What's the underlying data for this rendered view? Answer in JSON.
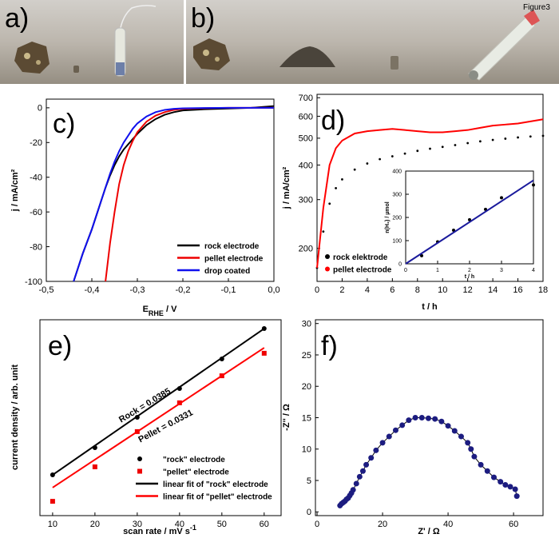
{
  "photos": {
    "a": "a)",
    "b": "b)",
    "b_tag": "Figure3"
  },
  "chart_data": [
    {
      "type": "line",
      "panel": "c)",
      "xlabel": [
        "E",
        "RHE",
        " / V"
      ],
      "ylabel": "j / mA/cm²",
      "x": [
        -0.44,
        -0.42,
        -0.4,
        -0.38,
        -0.37,
        -0.36,
        -0.35,
        -0.34,
        -0.33,
        -0.32,
        -0.31,
        -0.3,
        -0.28,
        -0.26,
        -0.24,
        -0.22,
        -0.2,
        -0.15,
        -0.1,
        -0.05,
        0.0
      ],
      "xlim": [
        -0.5,
        0.0
      ],
      "ylim": [
        -100,
        5
      ],
      "xticks": [
        {
          "value": -0.5,
          "label": "-0,5"
        },
        {
          "value": -0.4,
          "label": "-0,4"
        },
        {
          "value": -0.3,
          "label": "-0,3"
        },
        {
          "value": -0.2,
          "label": "-0,2"
        },
        {
          "value": -0.1,
          "label": "-0,1"
        },
        {
          "value": 0.0,
          "label": "0,0"
        }
      ],
      "yticks": [
        0,
        -20,
        -40,
        -60,
        -80,
        -100
      ],
      "legend": "lower right",
      "series": [
        {
          "name": "rock electrode",
          "color": "#000000",
          "mode": "lines",
          "values": [
            -100,
            -84,
            -70,
            -54,
            -46,
            -39,
            -33,
            -28,
            -24,
            -21,
            -18,
            -15,
            -10,
            -6.5,
            -4,
            -2.5,
            -1.5,
            -0.8,
            -0.4,
            0,
            1
          ]
        },
        {
          "name": "pellet electrode",
          "color": "#ee0000",
          "mode": "lines",
          "values": [
            null,
            null,
            null,
            null,
            -100,
            -78,
            -60,
            -44,
            -33,
            -25,
            -19,
            -14,
            -8,
            -4.5,
            -2.5,
            -1.2,
            -0.6,
            -0.2,
            0,
            0,
            0
          ]
        },
        {
          "name": "drop coated",
          "color": "#1010ee",
          "mode": "lines",
          "values": [
            -100,
            -84,
            -70,
            -54,
            -46,
            -38,
            -31,
            -25,
            -20,
            -16,
            -12,
            -9,
            -5,
            -2.5,
            -1.2,
            -0.6,
            -0.3,
            -0.1,
            0,
            0,
            0
          ]
        }
      ]
    },
    {
      "type": "scatter",
      "panel": "d)",
      "xlabel": "t / h",
      "ylabel": "j / mA/cm²",
      "yscale": "log",
      "x": [
        0,
        0.5,
        1,
        1.5,
        2,
        3,
        4,
        5,
        6,
        7,
        8,
        9,
        10,
        11,
        12,
        13,
        14,
        15,
        16,
        17,
        18
      ],
      "xlim": [
        0,
        18
      ],
      "ylim": [
        152,
        720
      ],
      "xticks": [
        0,
        2,
        4,
        6,
        8,
        10,
        12,
        14,
        16,
        18
      ],
      "yticks": [
        200,
        300,
        400,
        500,
        600,
        700
      ],
      "legend": "lower left",
      "series": [
        {
          "name": "rock elektrode",
          "color": "#000000",
          "mode": "markers",
          "values": [
            170,
            230,
            290,
            330,
            355,
            385,
            405,
            420,
            430,
            440,
            450,
            458,
            465,
            472,
            480,
            487,
            493,
            498,
            503,
            507,
            510
          ]
        },
        {
          "name": "pellet electrode",
          "color": "#ff0000",
          "mode": "lines",
          "values": [
            170,
            280,
            400,
            460,
            490,
            520,
            530,
            535,
            540,
            535,
            530,
            525,
            525,
            530,
            535,
            545,
            555,
            560,
            565,
            575,
            585
          ]
        }
      ]
    },
    {
      "type": "scatter",
      "xlabel": "t / h",
      "ylabel": "n(H₂) / µmol",
      "xlim": [
        0,
        4
      ],
      "ylim": [
        0,
        400
      ],
      "xticks": [
        0,
        1,
        2,
        3,
        4
      ],
      "yticks": [
        0,
        100,
        200,
        300,
        400
      ],
      "series": [
        {
          "color": "#000000",
          "mode": "markers",
          "x": [
            0.5,
            1,
            1.5,
            2,
            2.5,
            3,
            4
          ],
          "values": [
            35,
            95,
            145,
            190,
            235,
            285,
            340
          ]
        },
        {
          "color": "#1a1a9c",
          "mode": "lines",
          "x": [
            0,
            4
          ],
          "values": [
            0,
            360
          ]
        }
      ]
    },
    {
      "type": "scatter",
      "panel": "e)",
      "xlabel": [
        "scan rate / mV s",
        "-1"
      ],
      "ylabel": "current density / arb. unit",
      "x": [
        10,
        20,
        30,
        40,
        50,
        60
      ],
      "xlim": [
        7,
        64
      ],
      "ylim": [
        0,
        100
      ],
      "xticks": [
        10,
        20,
        30,
        40,
        50,
        60
      ],
      "legend": "lower right",
      "annotations": [
        {
          "text": "Rock = 0.0385",
          "color": "#000000"
        },
        {
          "text": "Pellet = 0.0331",
          "color": "#ee0000"
        }
      ],
      "series": [
        {
          "name": "\"rock\" electrode",
          "color": "#000000",
          "mode": "markers",
          "marker": "circle",
          "values": [
            20.8,
            34.7,
            50.2,
            64.9,
            80,
            95.5
          ]
        },
        {
          "name": "\"pellet\" electrode",
          "color": "#ee0000",
          "mode": "markers",
          "marker": "square",
          "values": [
            7.3,
            24.9,
            42.9,
            57.6,
            71.4,
            82.9
          ]
        },
        {
          "name": "linear fit of \"rock\" electrode",
          "color": "#000000",
          "mode": "lines",
          "x": [
            10,
            60
          ],
          "values": [
            20.8,
            95.5
          ]
        },
        {
          "name": "linear fit of \"pellet\" electrode",
          "color": "#ff0000",
          "mode": "lines",
          "x": [
            10,
            60
          ],
          "values": [
            14.3,
            85.7
          ]
        }
      ]
    },
    {
      "type": "line",
      "panel": "f)",
      "xlabel": "Z' / Ω",
      "ylabel": "-Z'' / Ω",
      "x": [
        7,
        7.5,
        8,
        8.5,
        9,
        9.5,
        10,
        10.5,
        11,
        12,
        13,
        14,
        15,
        16.5,
        18,
        20,
        22,
        24,
        26,
        28,
        30,
        32,
        34,
        36,
        38,
        40,
        42,
        44,
        46,
        47,
        48,
        50,
        52,
        54,
        56,
        57.5,
        59,
        60.5,
        61
      ],
      "xlim": [
        -0.5,
        69
      ],
      "ylim": [
        -0.6,
        30.6
      ],
      "xticks": [
        0,
        20,
        40,
        60
      ],
      "yticks": [
        0,
        5,
        10,
        15,
        20,
        25,
        30
      ],
      "series": [
        {
          "color": "#1c1c80",
          "mode": "lines+markers",
          "values": [
            1,
            1.3,
            1.5,
            1.7,
            2,
            2.2,
            2.6,
            3,
            3.5,
            4.5,
            5.6,
            6.5,
            7.5,
            8.6,
            9.8,
            11,
            12,
            13,
            13.8,
            14.6,
            15,
            15,
            14.9,
            14.8,
            14.4,
            13.7,
            12.9,
            12,
            11,
            10,
            8.8,
            7.5,
            6.5,
            5.5,
            4.8,
            4.3,
            4,
            3.6,
            2.5
          ]
        }
      ]
    }
  ]
}
